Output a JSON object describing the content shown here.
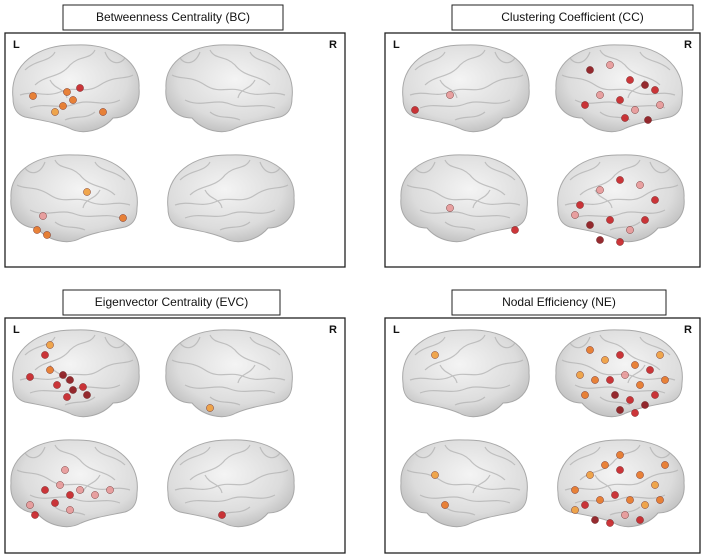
{
  "panels": [
    {
      "title": "Betweenness Centrality (BC)",
      "left_label": "L",
      "right_label": "R"
    },
    {
      "title": "Clustering Coefficient (CC)",
      "left_label": "L",
      "right_label": "R"
    },
    {
      "title": "Eigenvector Centrality (EVC)",
      "left_label": "L",
      "right_label": "R"
    },
    {
      "title": "Nodal Efficiency (NE)",
      "left_label": "L",
      "right_label": "R"
    }
  ]
}
